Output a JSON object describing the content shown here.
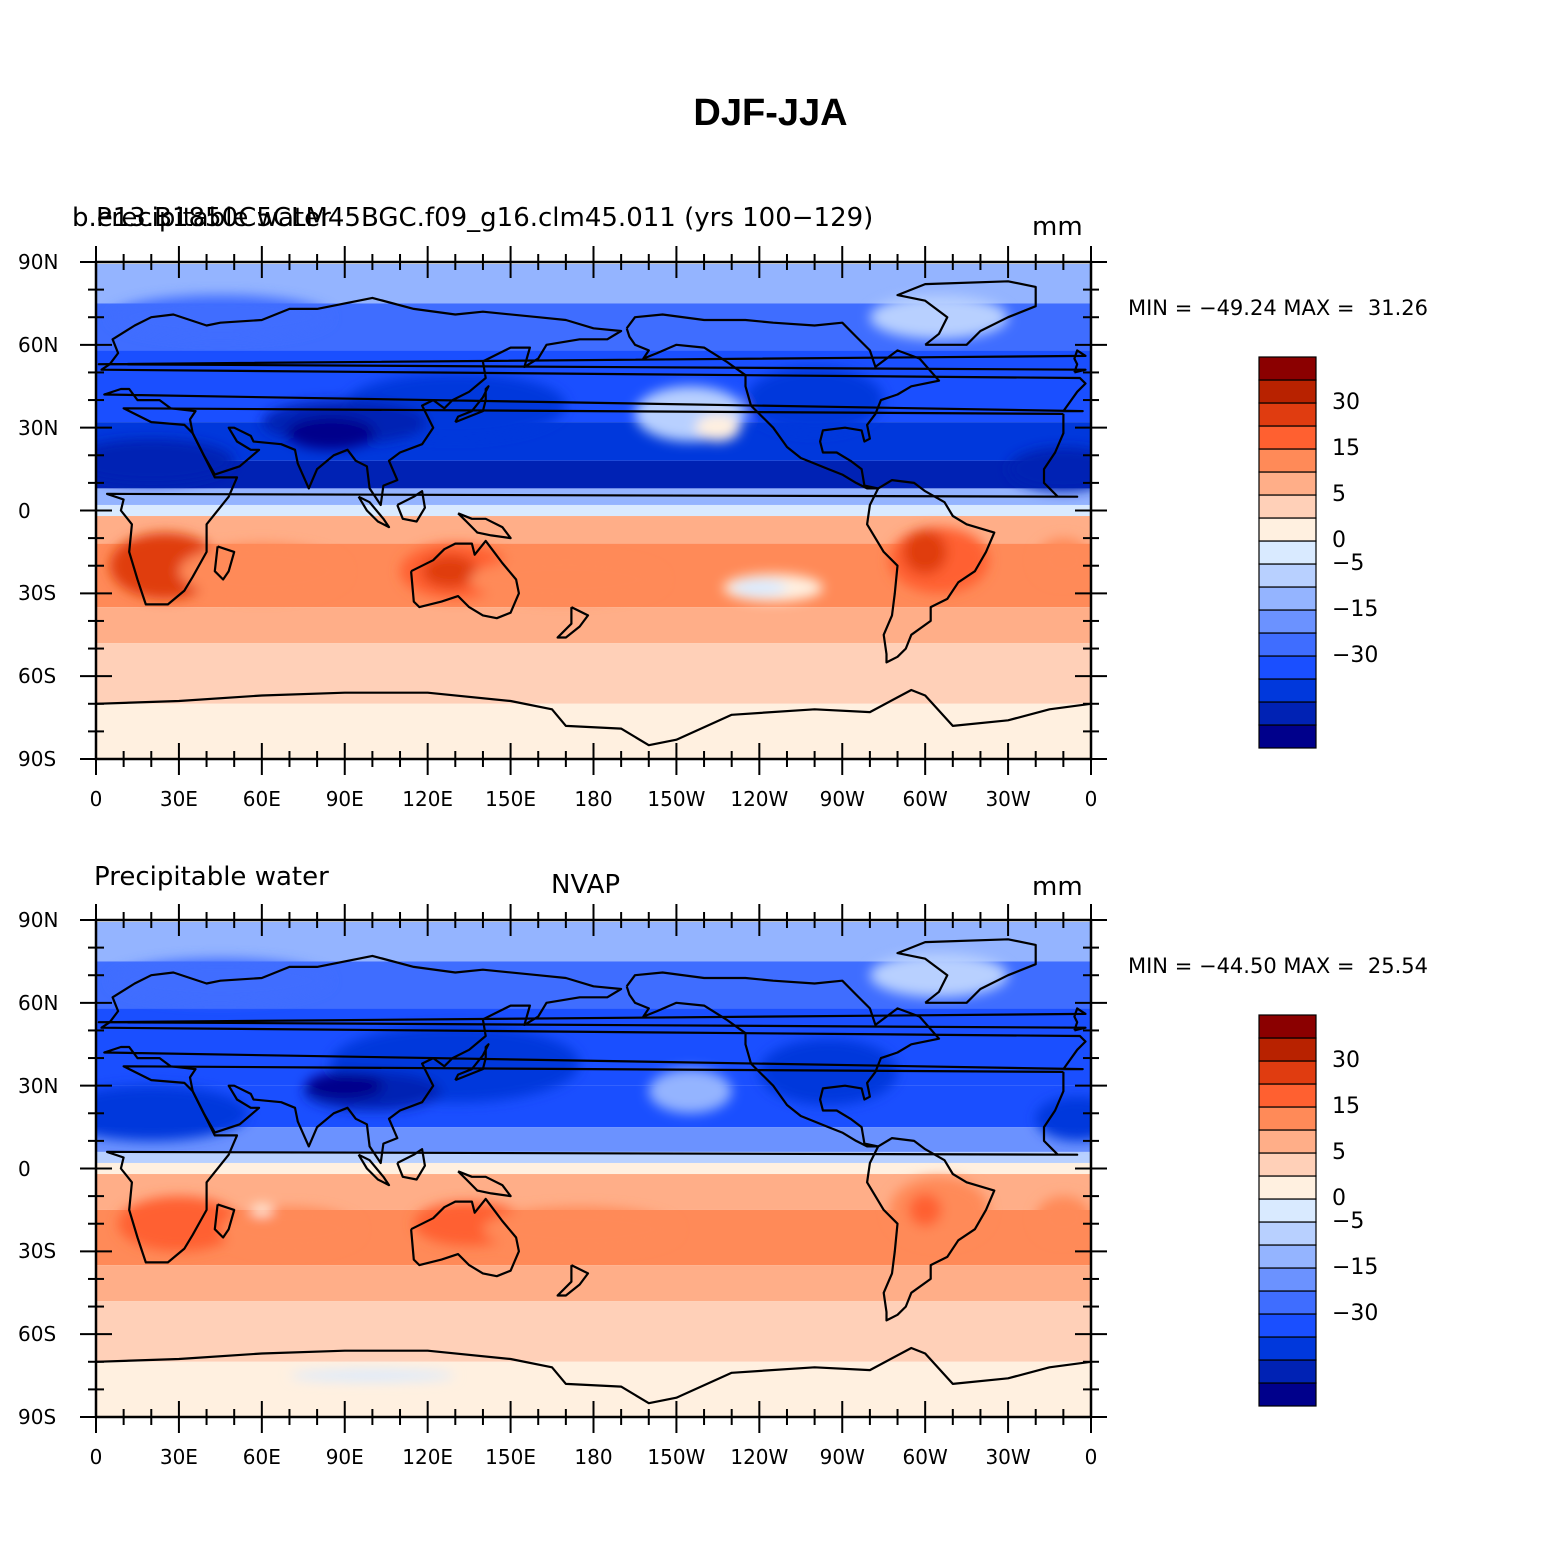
{
  "main_title": "DJF-JJA",
  "colorbar": {
    "colors": [
      "#00008b",
      "#0022b4",
      "#0038dc",
      "#1a4fff",
      "#3f6dff",
      "#6b92ff",
      "#94b4ff",
      "#b8d0ff",
      "#d9eaff",
      "#fff0e0",
      "#ffd0b8",
      "#ffae88",
      "#ff8a58",
      "#ff6030",
      "#e03c10",
      "#b82200",
      "#8b0000"
    ],
    "labels": [
      "-30",
      "-15",
      "-5",
      "0",
      "5",
      "15",
      "30"
    ],
    "labels_display": [
      "−30",
      "−15",
      "−5",
      "0",
      "5",
      "15",
      "30"
    ]
  },
  "axes": {
    "y_ticks": [
      "90N",
      "60N",
      "30N",
      "0",
      "30S",
      "60S",
      "90S"
    ],
    "x_ticks": [
      "0",
      "30E",
      "60E",
      "90E",
      "120E",
      "150E",
      "180",
      "150W",
      "120W",
      "90W",
      "60W",
      "30W",
      "0"
    ]
  },
  "panels": [
    {
      "left_label": "Precipitable water",
      "center_label": "b.e13.B1850C5CLM45BGC.f09_g16.clm45.011 (yrs 100−129)",
      "right_label": "mm",
      "min_max": "MIN = −49.24 MAX =  31.26"
    },
    {
      "left_label": "Precipitable water",
      "center_label": "NVAP",
      "right_label": "mm",
      "min_max": "MIN = −44.50 MAX =  25.54"
    }
  ],
  "colors": {
    "coastline": "#000000"
  }
}
